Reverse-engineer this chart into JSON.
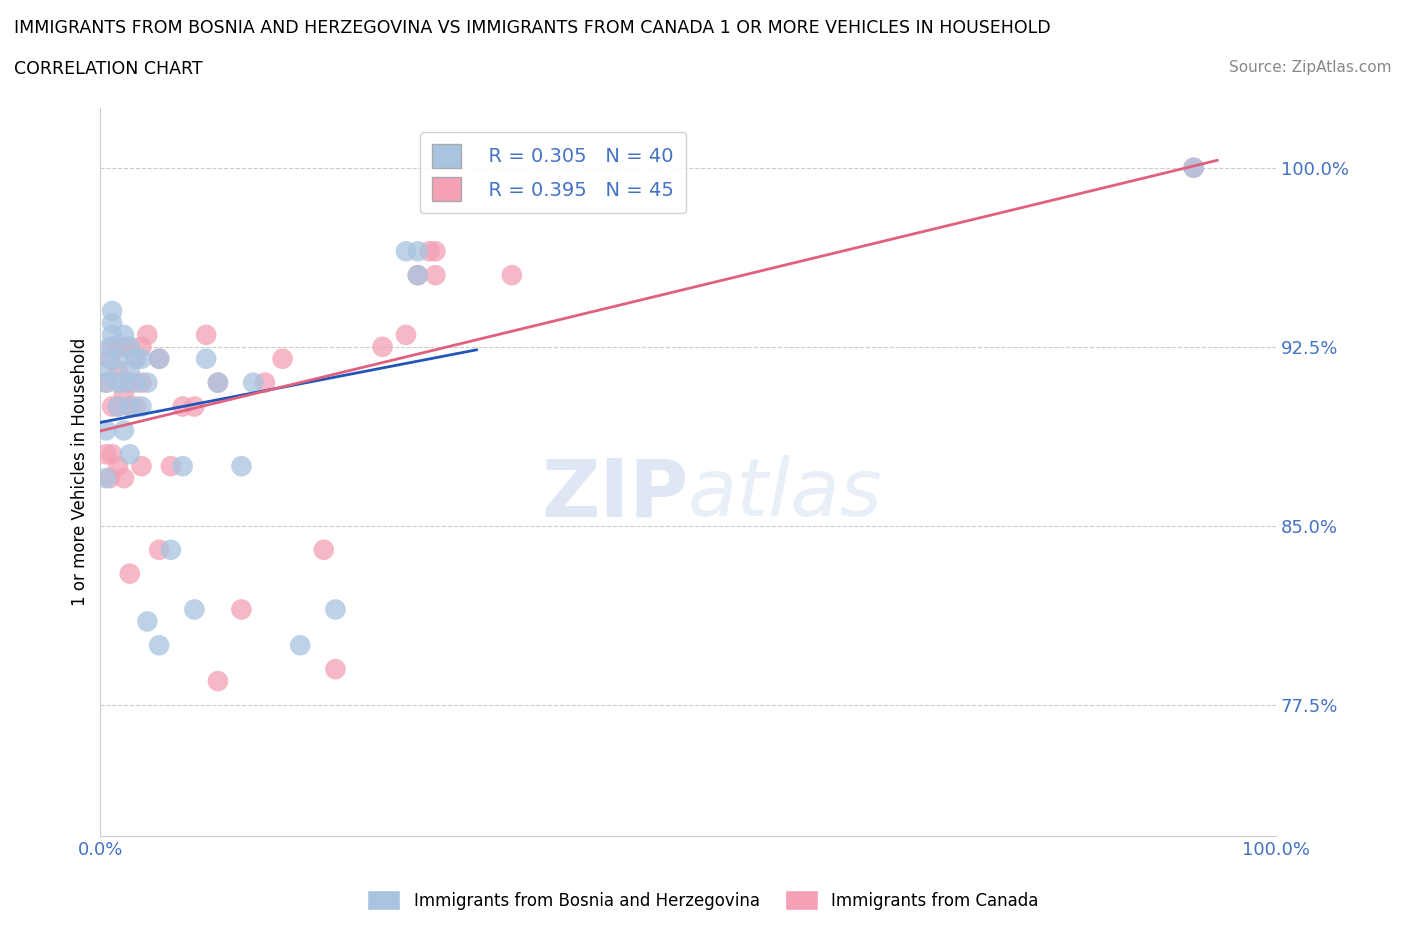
{
  "title": "IMMIGRANTS FROM BOSNIA AND HERZEGOVINA VS IMMIGRANTS FROM CANADA 1 OR MORE VEHICLES IN HOUSEHOLD",
  "subtitle": "CORRELATION CHART",
  "source": "Source: ZipAtlas.com",
  "ylabel": "1 or more Vehicles in Household",
  "xlim": [
    0.0,
    1.0
  ],
  "ylim": [
    0.72,
    1.025
  ],
  "yticks": [
    0.775,
    0.85,
    0.925,
    1.0
  ],
  "ytick_labels": [
    "77.5%",
    "85.0%",
    "92.5%",
    "100.0%"
  ],
  "xticks": [
    0.0,
    1.0
  ],
  "xtick_labels": [
    "0.0%",
    "100.0%"
  ],
  "bosnia_color": "#a8c4e0",
  "canada_color": "#f4a0b5",
  "bosnia_line_color": "#2255bb",
  "canada_line_color": "#e06080",
  "bosnia_R": 0.305,
  "bosnia_N": 40,
  "canada_R": 0.395,
  "canada_N": 45,
  "legend_bosnia": "Immigrants from Bosnia and Herzegovina",
  "legend_canada": "Immigrants from Canada",
  "watermark_zip": "ZIP",
  "watermark_atlas": "atlas",
  "grid_color": "#cccccc",
  "bosnia_x": [
    0.005,
    0.005,
    0.005,
    0.005,
    0.008,
    0.008,
    0.01,
    0.01,
    0.01,
    0.015,
    0.015,
    0.015,
    0.02,
    0.02,
    0.02,
    0.025,
    0.025,
    0.025,
    0.025,
    0.03,
    0.03,
    0.035,
    0.035,
    0.04,
    0.04,
    0.05,
    0.05,
    0.06,
    0.07,
    0.08,
    0.09,
    0.1,
    0.12,
    0.13,
    0.17,
    0.2,
    0.26,
    0.27,
    0.27,
    0.93
  ],
  "bosnia_y": [
    0.87,
    0.89,
    0.91,
    0.915,
    0.92,
    0.925,
    0.93,
    0.935,
    0.94,
    0.9,
    0.91,
    0.92,
    0.89,
    0.91,
    0.93,
    0.88,
    0.9,
    0.915,
    0.925,
    0.91,
    0.92,
    0.9,
    0.92,
    0.81,
    0.91,
    0.8,
    0.92,
    0.84,
    0.875,
    0.815,
    0.92,
    0.91,
    0.875,
    0.91,
    0.8,
    0.815,
    0.965,
    0.955,
    0.965,
    1.0
  ],
  "canada_x": [
    0.005,
    0.005,
    0.008,
    0.008,
    0.01,
    0.01,
    0.01,
    0.015,
    0.015,
    0.015,
    0.015,
    0.02,
    0.02,
    0.02,
    0.025,
    0.025,
    0.025,
    0.025,
    0.03,
    0.03,
    0.035,
    0.035,
    0.035,
    0.04,
    0.05,
    0.05,
    0.06,
    0.07,
    0.08,
    0.09,
    0.1,
    0.1,
    0.12,
    0.14,
    0.155,
    0.19,
    0.2,
    0.24,
    0.26,
    0.27,
    0.28,
    0.285,
    0.285,
    0.35,
    0.93
  ],
  "canada_y": [
    0.88,
    0.91,
    0.87,
    0.92,
    0.88,
    0.9,
    0.925,
    0.875,
    0.9,
    0.915,
    0.925,
    0.87,
    0.905,
    0.925,
    0.83,
    0.9,
    0.91,
    0.925,
    0.9,
    0.92,
    0.875,
    0.91,
    0.925,
    0.93,
    0.84,
    0.92,
    0.875,
    0.9,
    0.9,
    0.93,
    0.785,
    0.91,
    0.815,
    0.91,
    0.92,
    0.84,
    0.79,
    0.925,
    0.93,
    0.955,
    0.965,
    0.955,
    0.965,
    0.955,
    1.0
  ],
  "bosnia_line_x": [
    0.0,
    0.32
  ],
  "canada_line_x": [
    0.0,
    0.95
  ]
}
